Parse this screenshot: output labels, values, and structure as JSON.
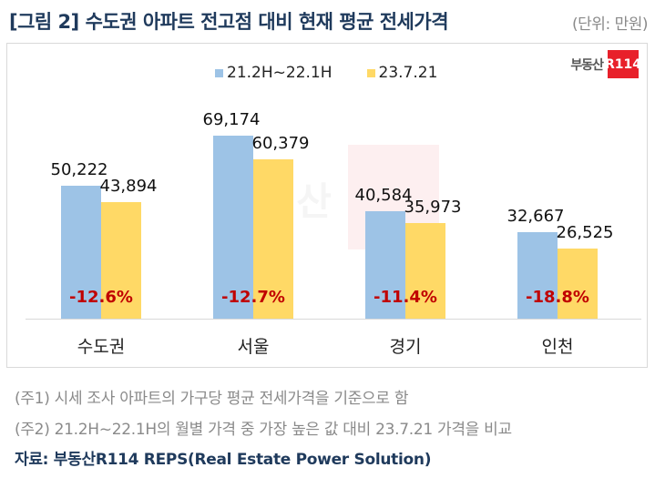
{
  "header": {
    "title": "[그림 2] 수도권 아파트 전고점 대비 현재 평균 전세가격",
    "unit": "(단위: 만원)"
  },
  "logo": {
    "text": "부동산",
    "badge": "R114"
  },
  "watermark": {
    "text": "부동산",
    "badge": "R114"
  },
  "legend": [
    {
      "label": "21.2H~22.1H",
      "color": "#9dc3e6"
    },
    {
      "label": "23.7.21",
      "color": "#ffd966"
    }
  ],
  "chart_data": {
    "type": "bar",
    "title": "[그림 2] 수도권 아파트 전고점 대비 현재 평균 전세가격",
    "unit": "만원",
    "xlabel": "",
    "ylabel": "",
    "categories": [
      "수도권",
      "서울",
      "경기",
      "인천"
    ],
    "series": [
      {
        "name": "21.2H~22.1H",
        "color": "#9dc3e6",
        "values": [
          50222,
          69174,
          40584,
          32667
        ],
        "labels": [
          "50,222",
          "69,174",
          "40,584",
          "32,667"
        ]
      },
      {
        "name": "23.7.21",
        "color": "#ffd966",
        "values": [
          43894,
          60379,
          35973,
          26525
        ],
        "labels": [
          "43,894",
          "60,379",
          "35,973",
          "26,525"
        ]
      }
    ],
    "annotations": [
      "-12.6%",
      "-12.7%",
      "-11.4%",
      "-18.8%"
    ],
    "grid": false,
    "legend_position": "top",
    "ylim": [
      0,
      70000
    ]
  },
  "notes": [
    "(주1) 시세 조사 아파트의 가구당 평균 전세가격을 기준으로 함",
    "(주2) 21.2H~22.1H의 월별 가격 중 가장 높은 값 대비 23.7.21 가격을 비교"
  ],
  "source": "자료: 부동산R114 REPS(Real Estate Power Solution)"
}
